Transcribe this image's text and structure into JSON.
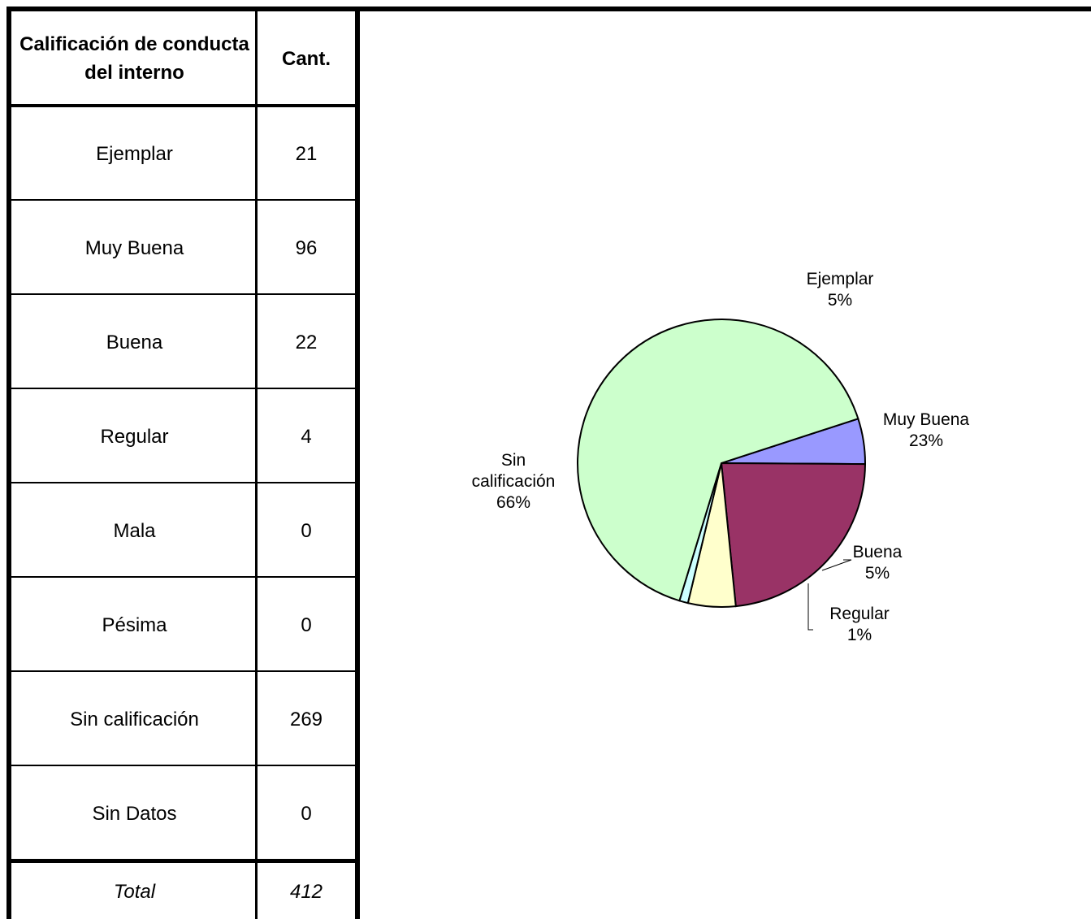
{
  "table": {
    "header": {
      "col1": "Calificación de conducta del interno",
      "col2": "Cant."
    },
    "rows": [
      {
        "label": "Ejemplar",
        "value": "21"
      },
      {
        "label": "Muy Buena",
        "value": "96"
      },
      {
        "label": "Buena",
        "value": "22"
      },
      {
        "label": "Regular",
        "value": "4"
      },
      {
        "label": "Mala",
        "value": "0"
      },
      {
        "label": "Pésima",
        "value": "0"
      },
      {
        "label": "Sin calificación",
        "value": "269"
      },
      {
        "label": "Sin Datos",
        "value": "0"
      }
    ],
    "total": {
      "label": "Total",
      "value": "412"
    }
  },
  "chart_data": {
    "type": "pie",
    "slices": [
      {
        "label": "Ejemplar",
        "value": 21,
        "percent_label": "5%",
        "color": "#9999FF"
      },
      {
        "label": "Muy Buena",
        "value": 96,
        "percent_label": "23%",
        "color": "#993366"
      },
      {
        "label": "Buena",
        "value": 22,
        "percent_label": "5%",
        "color": "#FFFFCC"
      },
      {
        "label": "Regular",
        "value": 4,
        "percent_label": "1%",
        "color": "#CCFFFF"
      },
      {
        "label": "Sin calificación",
        "value": 269,
        "percent_label": "66%",
        "color": "#CCFFCC"
      }
    ]
  }
}
